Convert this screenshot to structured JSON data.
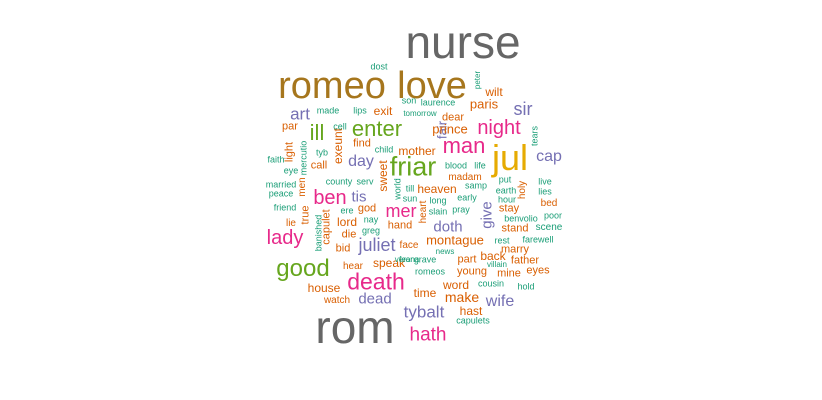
{
  "colors": {
    "gray": "#666666",
    "brown": "#a6761d",
    "gold": "#e6ab02",
    "orange": "#d95f02",
    "green": "#66a61e",
    "purple": "#7570b3",
    "pink": "#e7298a",
    "teal": "#1b9e77"
  },
  "words": [
    {
      "t": "nurse",
      "c": "gray",
      "s": 46
    },
    {
      "t": "rom",
      "c": "gray",
      "s": 46
    },
    {
      "t": "romeo",
      "c": "brown",
      "s": 38
    },
    {
      "t": "love",
      "c": "brown",
      "s": 38
    },
    {
      "t": "jul",
      "c": "gold",
      "s": 36
    },
    {
      "t": "friar",
      "c": "green",
      "s": 27
    },
    {
      "t": "enter",
      "c": "green",
      "s": 22
    },
    {
      "t": "good",
      "c": "green",
      "s": 24
    },
    {
      "t": "ill",
      "c": "green",
      "s": 22
    },
    {
      "t": "death",
      "c": "pink",
      "s": 23
    },
    {
      "t": "man",
      "c": "pink",
      "s": 22
    },
    {
      "t": "night",
      "c": "pink",
      "s": 20
    },
    {
      "t": "lady",
      "c": "pink",
      "s": 20
    },
    {
      "t": "ben",
      "c": "pink",
      "s": 20
    },
    {
      "t": "hath",
      "c": "pink",
      "s": 19
    },
    {
      "t": "mer",
      "c": "pink",
      "s": 18
    },
    {
      "t": "juliet",
      "c": "purple",
      "s": 18
    },
    {
      "t": "tybalt",
      "c": "purple",
      "s": 17
    },
    {
      "t": "sir",
      "c": "purple",
      "s": 18
    },
    {
      "t": "art",
      "c": "purple",
      "s": 17
    },
    {
      "t": "cap",
      "c": "purple",
      "s": 16
    },
    {
      "t": "day",
      "c": "purple",
      "s": 16
    },
    {
      "t": "wife",
      "c": "purple",
      "s": 16
    },
    {
      "t": "dead",
      "c": "purple",
      "s": 15
    },
    {
      "t": "doth",
      "c": "purple",
      "s": 15
    },
    {
      "t": "tis",
      "c": "purple",
      "s": 15
    },
    {
      "t": "give",
      "c": "purple",
      "s": 15
    },
    {
      "t": "fair",
      "c": "purple",
      "s": 13
    },
    {
      "t": "make",
      "c": "orange",
      "s": 14
    },
    {
      "t": "paris",
      "c": "orange",
      "s": 13
    },
    {
      "t": "prince",
      "c": "orange",
      "s": 13
    },
    {
      "t": "montague",
      "c": "orange",
      "s": 13
    },
    {
      "t": "mother",
      "c": "orange",
      "s": 12
    },
    {
      "t": "time",
      "c": "orange",
      "s": 12
    },
    {
      "t": "speak",
      "c": "orange",
      "s": 12
    },
    {
      "t": "house",
      "c": "orange",
      "s": 12
    },
    {
      "t": "exit",
      "c": "orange",
      "s": 12
    },
    {
      "t": "wilt",
      "c": "orange",
      "s": 12
    },
    {
      "t": "dear",
      "c": "orange",
      "s": 11
    },
    {
      "t": "heaven",
      "c": "orange",
      "s": 12
    },
    {
      "t": "hast",
      "c": "orange",
      "s": 12
    },
    {
      "t": "word",
      "c": "orange",
      "s": 12
    },
    {
      "t": "stay",
      "c": "orange",
      "s": 11
    },
    {
      "t": "back",
      "c": "orange",
      "s": 12
    },
    {
      "t": "father",
      "c": "orange",
      "s": 11
    },
    {
      "t": "eyes",
      "c": "orange",
      "s": 11
    },
    {
      "t": "mine",
      "c": "orange",
      "s": 11
    },
    {
      "t": "young",
      "c": "orange",
      "s": 11
    },
    {
      "t": "part",
      "c": "orange",
      "s": 11
    },
    {
      "t": "hand",
      "c": "orange",
      "s": 11
    },
    {
      "t": "lord",
      "c": "orange",
      "s": 12
    },
    {
      "t": "die",
      "c": "orange",
      "s": 11
    },
    {
      "t": "god",
      "c": "orange",
      "s": 11
    },
    {
      "t": "call",
      "c": "orange",
      "s": 11
    },
    {
      "t": "find",
      "c": "orange",
      "s": 11
    },
    {
      "t": "par",
      "c": "orange",
      "s": 11
    },
    {
      "t": "bid",
      "c": "orange",
      "s": 11
    },
    {
      "t": "hear",
      "c": "orange",
      "s": 10
    },
    {
      "t": "watch",
      "c": "orange",
      "s": 10
    },
    {
      "t": "face",
      "c": "orange",
      "s": 10
    },
    {
      "t": "marry",
      "c": "orange",
      "s": 11
    },
    {
      "t": "stand",
      "c": "orange",
      "s": 11
    },
    {
      "t": "bed",
      "c": "orange",
      "s": 10
    },
    {
      "t": "madam",
      "c": "orange",
      "s": 10
    },
    {
      "t": "lie",
      "c": "orange",
      "s": 10
    },
    {
      "t": "sweet",
      "c": "orange",
      "s": 12
    },
    {
      "t": "exeunt",
      "c": "orange",
      "s": 12
    },
    {
      "t": "light",
      "c": "orange",
      "s": 11
    },
    {
      "t": "true",
      "c": "orange",
      "s": 11
    },
    {
      "t": "capulet",
      "c": "orange",
      "s": 11
    },
    {
      "t": "holy",
      "c": "orange",
      "s": 10
    },
    {
      "t": "heart",
      "c": "orange",
      "s": 10
    },
    {
      "t": "men",
      "c": "orange",
      "s": 10
    },
    {
      "t": "dost",
      "c": "teal",
      "s": 9
    },
    {
      "t": "made",
      "c": "teal",
      "s": 9
    },
    {
      "t": "lips",
      "c": "teal",
      "s": 9
    },
    {
      "t": "son",
      "c": "teal",
      "s": 9
    },
    {
      "t": "laurence",
      "c": "teal",
      "s": 9
    },
    {
      "t": "tomorrow",
      "c": "teal",
      "s": 8
    },
    {
      "t": "cell",
      "c": "teal",
      "s": 9
    },
    {
      "t": "child",
      "c": "teal",
      "s": 9
    },
    {
      "t": "faith",
      "c": "teal",
      "s": 9
    },
    {
      "t": "eye",
      "c": "teal",
      "s": 9
    },
    {
      "t": "tyb",
      "c": "teal",
      "s": 9
    },
    {
      "t": "married",
      "c": "teal",
      "s": 9
    },
    {
      "t": "peace",
      "c": "teal",
      "s": 9
    },
    {
      "t": "friend",
      "c": "teal",
      "s": 9
    },
    {
      "t": "county",
      "c": "teal",
      "s": 9
    },
    {
      "t": "serv",
      "c": "teal",
      "s": 9
    },
    {
      "t": "blood",
      "c": "teal",
      "s": 9
    },
    {
      "t": "life",
      "c": "teal",
      "s": 9
    },
    {
      "t": "till",
      "c": "teal",
      "s": 9
    },
    {
      "t": "sun",
      "c": "teal",
      "s": 9
    },
    {
      "t": "long",
      "c": "teal",
      "s": 9
    },
    {
      "t": "early",
      "c": "teal",
      "s": 9
    },
    {
      "t": "slain",
      "c": "teal",
      "s": 9
    },
    {
      "t": "pray",
      "c": "teal",
      "s": 9
    },
    {
      "t": "samp",
      "c": "teal",
      "s": 9
    },
    {
      "t": "put",
      "c": "teal",
      "s": 9
    },
    {
      "t": "earth",
      "c": "teal",
      "s": 9
    },
    {
      "t": "hour",
      "c": "teal",
      "s": 9
    },
    {
      "t": "live",
      "c": "teal",
      "s": 9
    },
    {
      "t": "lies",
      "c": "teal",
      "s": 9
    },
    {
      "t": "poor",
      "c": "teal",
      "s": 9
    },
    {
      "t": "benvolio",
      "c": "teal",
      "s": 9
    },
    {
      "t": "scene",
      "c": "teal",
      "s": 10
    },
    {
      "t": "farewell",
      "c": "teal",
      "s": 9
    },
    {
      "t": "rest",
      "c": "teal",
      "s": 9
    },
    {
      "t": "ere",
      "c": "teal",
      "s": 9
    },
    {
      "t": "nay",
      "c": "teal",
      "s": 9
    },
    {
      "t": "greg",
      "c": "teal",
      "s": 9
    },
    {
      "t": "verona",
      "c": "teal",
      "s": 8
    },
    {
      "t": "news",
      "c": "teal",
      "s": 8
    },
    {
      "t": "fear",
      "c": "teal",
      "s": 8
    },
    {
      "t": "grave",
      "c": "teal",
      "s": 9
    },
    {
      "t": "villain",
      "c": "teal",
      "s": 8
    },
    {
      "t": "romeos",
      "c": "teal",
      "s": 9
    },
    {
      "t": "cousin",
      "c": "teal",
      "s": 9
    },
    {
      "t": "hold",
      "c": "teal",
      "s": 9
    },
    {
      "t": "capulets",
      "c": "teal",
      "s": 9
    },
    {
      "t": "peter",
      "c": "teal",
      "s": 8
    },
    {
      "t": "tears",
      "c": "teal",
      "s": 9
    },
    {
      "t": "mercutio",
      "c": "teal",
      "s": 9
    },
    {
      "t": "banished",
      "c": "teal",
      "s": 9
    },
    {
      "t": "world",
      "c": "teal",
      "s": 9
    }
  ]
}
